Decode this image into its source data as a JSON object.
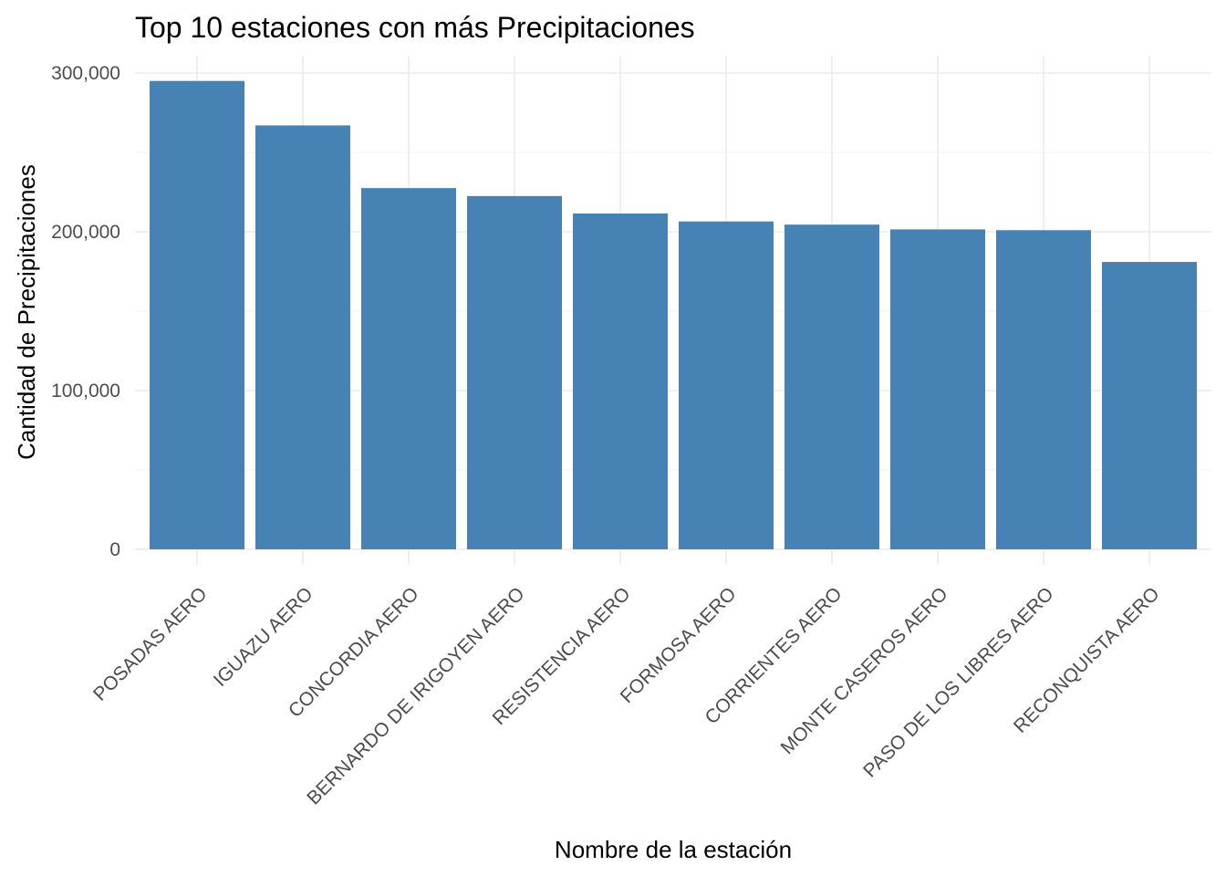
{
  "chart_data": {
    "type": "bar",
    "title": "Top 10 estaciones con más Precipitaciones",
    "xlabel": "Nombre de la estación",
    "ylabel": "Cantidad de Precipitaciones",
    "categories": [
      "POSADAS AERO",
      "IGUAZU AERO",
      "CONCORDIA AERO",
      "BERNARDO DE IRIGOYEN AERO",
      "RESISTENCIA AERO",
      "FORMOSA AERO",
      "CORRIENTES AERO",
      "MONTE CASEROS AERO",
      "PASO DE LOS LIBRES AERO",
      "RECONQUISTA AERO"
    ],
    "values": [
      295000,
      267000,
      227500,
      222500,
      211500,
      206500,
      204500,
      201500,
      201000,
      181000
    ],
    "yticks": [
      0,
      100000,
      200000,
      300000
    ],
    "ytick_labels": [
      "0",
      "100,000",
      "200,000",
      "300,000"
    ],
    "ylim": [
      0,
      300000
    ],
    "grid": true,
    "legend": "none",
    "bar_color": "#4682B4"
  }
}
